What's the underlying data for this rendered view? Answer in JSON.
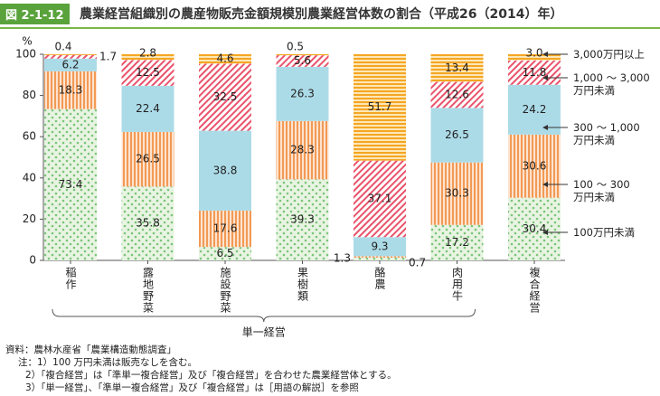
{
  "header": {
    "label": "図 2-1-12",
    "title": "農業経営組織別の農産物販売金額規模別農業経営体数の割合（平成26（2014）年）"
  },
  "chart_data": {
    "type": "stacked-bar",
    "y_unit": "%",
    "categories": [
      "稲作",
      "露地野菜",
      "施設野菜",
      "果樹類",
      "酪農",
      "肉用牛",
      "複合経営"
    ],
    "group": {
      "label": "単一経営",
      "from": 0,
      "to": 5
    },
    "ylim": [
      0,
      100
    ],
    "yticks": [
      0,
      20,
      40,
      60,
      80,
      100
    ],
    "series": [
      {
        "name": "100万円未満",
        "color": "#7cc47a",
        "pattern": "dots",
        "values": [
          73.4,
          35.8,
          6.5,
          39.3,
          1.3,
          17.2,
          30.4
        ]
      },
      {
        "name": "100 ～ 300\n万円未満",
        "color": "#f29a55",
        "pattern": "vstripes",
        "values": [
          18.3,
          26.5,
          17.6,
          28.3,
          0.7,
          30.3,
          30.6
        ]
      },
      {
        "name": "300 ～ 1,000\n万円未満",
        "color": "#acdbe8",
        "pattern": "solid",
        "values": [
          6.2,
          22.4,
          38.8,
          26.3,
          9.3,
          26.5,
          24.2
        ]
      },
      {
        "name": "1,000 ～ 3,000\n万円未満",
        "color": "#e9536b",
        "pattern": "diag",
        "values": [
          1.7,
          12.5,
          32.5,
          5.6,
          37.1,
          12.6,
          11.8
        ]
      },
      {
        "name": "3,000万円以上",
        "color": "#f5a623",
        "pattern": "hstripes",
        "values": [
          0.4,
          2.8,
          4.6,
          0.5,
          51.7,
          13.4,
          3.0
        ],
        "value_labels": [
          "0.4",
          "2.8",
          "4.6",
          "0.5",
          "51.7",
          "13.4",
          "3.0"
        ]
      }
    ]
  },
  "source": "資料：農林水産省「農業構造動態調査」",
  "notes": [
    "注：1）100 万円未満は販売なしを含む。",
    "2）「複合経営」は「準単一複合経営」及び「複合経営」を合わせた農業経営体とする。",
    "3）「単一経営」、「準単一複合経営」及び「複合経営」は［用語の解説］を参照"
  ]
}
